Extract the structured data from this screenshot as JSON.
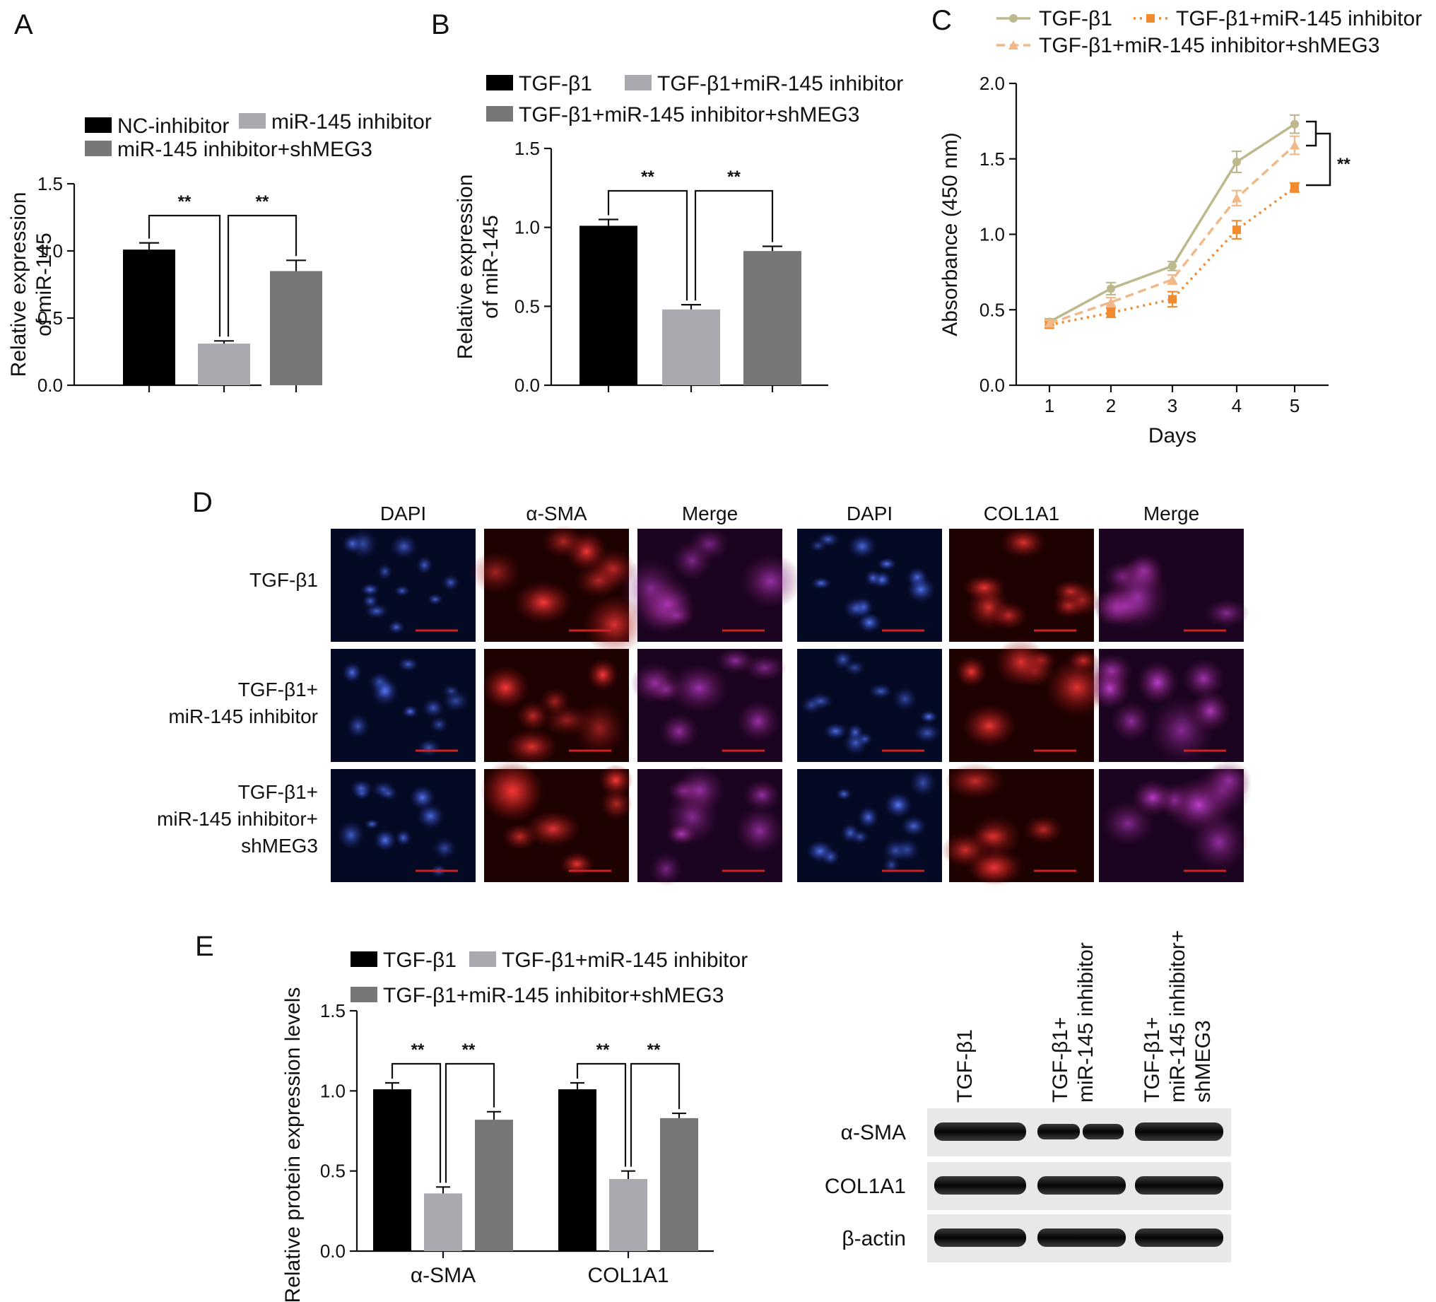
{
  "panels": {
    "A": "A",
    "B": "B",
    "C": "C",
    "D": "D",
    "E": "E"
  },
  "colors": {
    "black_bar": "#000000",
    "light_gray_bar": "#a9a9b0",
    "dark_gray_bar": "#777777",
    "line_tgf": "#bdb98e",
    "line_inhib": "#f28a2e",
    "line_shmeg3": "#f2b887",
    "scale_bar": "#cc2222"
  },
  "chart_data": [
    {
      "id": "A",
      "type": "bar",
      "ylabel_line1": "Relative expression",
      "ylabel_line2": "of miR-145",
      "yticks": [
        "0.0",
        "0.5",
        "1.0",
        "1.5"
      ],
      "ylim": [
        0,
        1.5
      ],
      "legend": [
        "NC-inhibitor",
        "miR-145 inhibitor",
        "miR-145 inhibitor+shMEG3"
      ],
      "values": [
        1.01,
        0.31,
        0.85
      ],
      "errors": [
        0.05,
        0.02,
        0.08
      ],
      "significance": [
        "**",
        "**"
      ]
    },
    {
      "id": "B",
      "type": "bar",
      "ylabel_line1": "Relative expression",
      "ylabel_line2": "of miR-145",
      "yticks": [
        "0.0",
        "0.5",
        "1.0",
        "1.5"
      ],
      "ylim": [
        0,
        1.5
      ],
      "legend": [
        "TGF-β1",
        "TGF-β1+miR-145 inhibitor",
        "TGF-β1+miR-145 inhibitor+shMEG3"
      ],
      "values": [
        1.01,
        0.48,
        0.85
      ],
      "errors": [
        0.04,
        0.03,
        0.03
      ],
      "significance": [
        "**",
        "**"
      ]
    },
    {
      "id": "C",
      "type": "line",
      "ylabel": "Absorbance (450 nm)",
      "xlabel": "Days",
      "x": [
        1,
        2,
        3,
        4,
        5
      ],
      "xticks": [
        "1",
        "2",
        "3",
        "4",
        "5"
      ],
      "yticks": [
        "0.0",
        "0.5",
        "1.0",
        "1.5",
        "2.0"
      ],
      "ylim": [
        0,
        2.0
      ],
      "series": [
        {
          "name": "TGF-β1",
          "values": [
            0.42,
            0.64,
            0.79,
            1.48,
            1.73
          ],
          "errors": [
            0.02,
            0.04,
            0.03,
            0.07,
            0.06
          ]
        },
        {
          "name": "TGF-β1+miR-145 inhibitor",
          "values": [
            0.4,
            0.48,
            0.57,
            1.03,
            1.31
          ],
          "errors": [
            0.02,
            0.03,
            0.05,
            0.06,
            0.03
          ]
        },
        {
          "name": "TGF-β1+miR-145 inhibitor+shMEG3",
          "values": [
            0.41,
            0.55,
            0.7,
            1.24,
            1.59
          ],
          "errors": [
            0.02,
            0.03,
            0.03,
            0.05,
            0.06
          ]
        }
      ],
      "significance": "**"
    },
    {
      "id": "E",
      "type": "bar",
      "ylabel": "Relative protein expression levels",
      "yticks": [
        "0.0",
        "0.5",
        "1.0",
        "1.5"
      ],
      "ylim": [
        0,
        1.5
      ],
      "categories": [
        "α-SMA",
        "COL1A1"
      ],
      "legend": [
        "TGF-β1",
        "TGF-β1+miR-145 inhibitor",
        "TGF-β1+miR-145 inhibitor+shMEG3"
      ],
      "series": [
        {
          "name": "TGF-β1",
          "values": [
            1.01,
            1.01
          ],
          "errors": [
            0.04,
            0.04
          ]
        },
        {
          "name": "TGF-β1+miR-145 inhibitor",
          "values": [
            0.36,
            0.45
          ],
          "errors": [
            0.04,
            0.05
          ]
        },
        {
          "name": "TGF-β1+miR-145 inhibitor+shMEG3",
          "values": [
            0.82,
            0.83
          ],
          "errors": [
            0.05,
            0.03
          ]
        }
      ],
      "significance": [
        "**",
        "**",
        "**",
        "**"
      ]
    }
  ],
  "microscopy": {
    "headers": [
      "DAPI",
      "α-SMA",
      "Merge",
      "DAPI",
      "COL1A1",
      "Merge"
    ],
    "rows": [
      {
        "label_lines": [
          "TGF-β1"
        ]
      },
      {
        "label_lines": [
          "TGF-β1+",
          "miR-145 inhibitor"
        ]
      },
      {
        "label_lines": [
          "TGF-β1+",
          "miR-145 inhibitor+",
          "shMEG3"
        ]
      }
    ]
  },
  "western_blot": {
    "lanes": [
      {
        "lines": [
          "TGF-β1"
        ]
      },
      {
        "lines": [
          "TGF-β1+",
          "miR-145 inhibitor"
        ]
      },
      {
        "lines": [
          "TGF-β1+",
          "miR-145 inhibitor+",
          "shMEG3"
        ]
      }
    ],
    "bands": [
      "α-SMA",
      "COL1A1",
      "β-actin"
    ]
  }
}
